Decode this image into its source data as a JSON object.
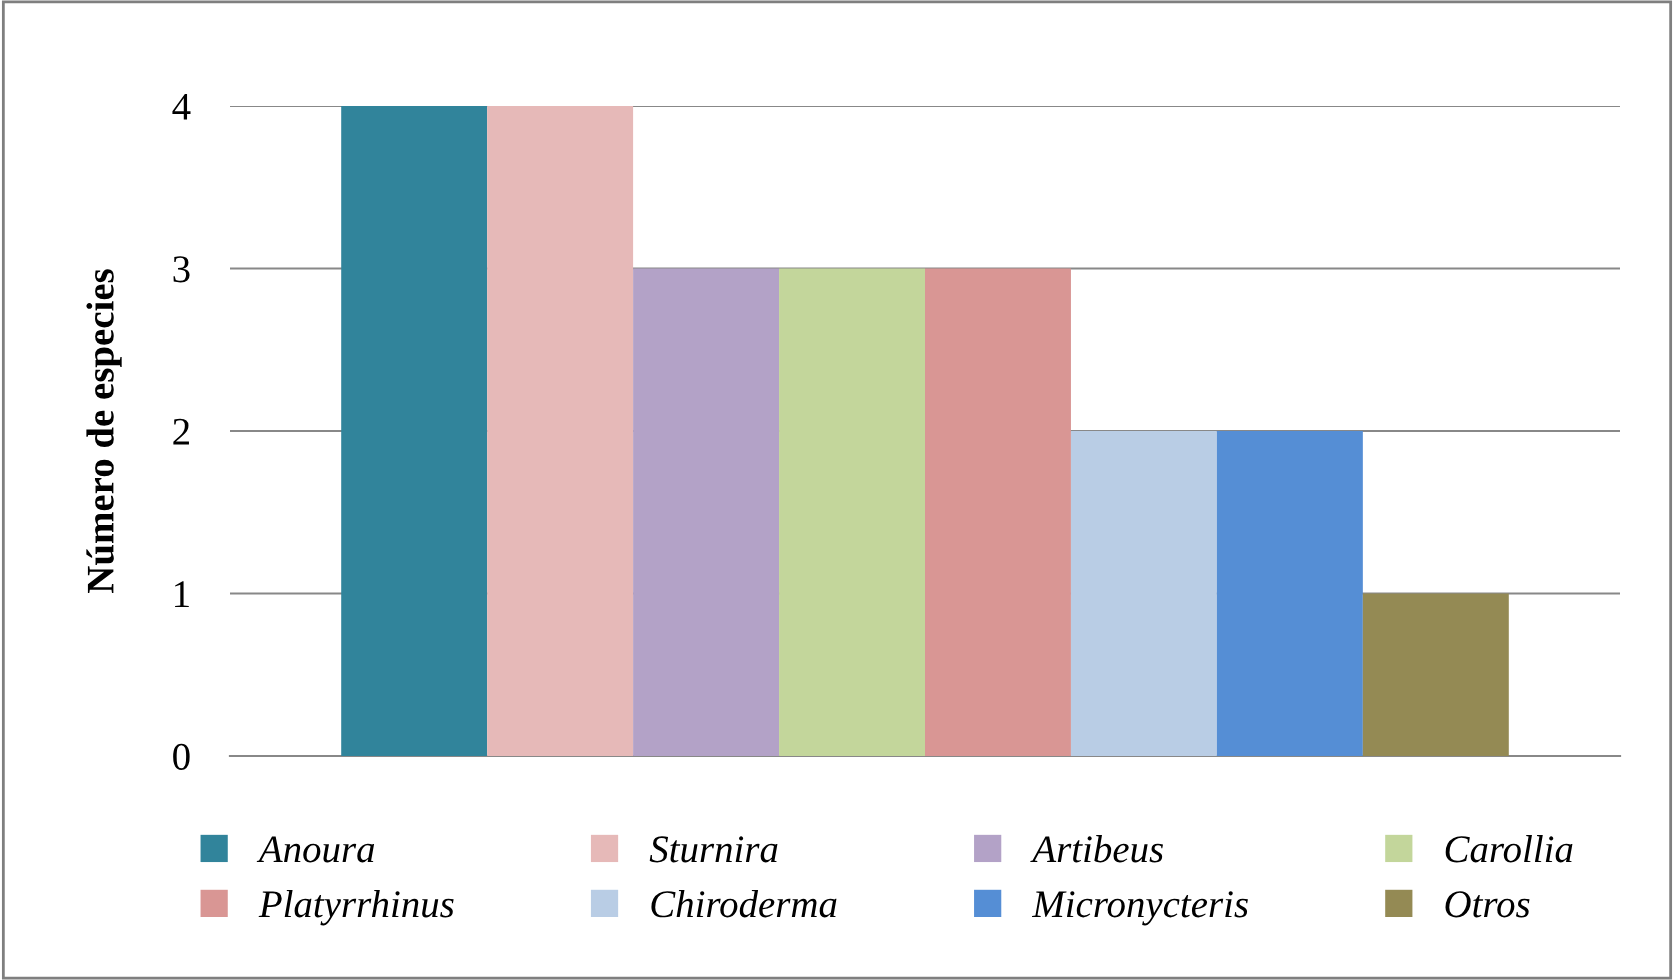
{
  "chart_data": {
    "type": "bar",
    "ylabel": "Número de especies",
    "categories": [
      null
    ],
    "series": [
      {
        "name": "Anoura",
        "color": "#31849b",
        "values": [
          4
        ]
      },
      {
        "name": "Sturnira",
        "color": "#e6b9b8",
        "values": [
          4
        ]
      },
      {
        "name": "Artibeus",
        "color": "#b3a2c7",
        "values": [
          3
        ]
      },
      {
        "name": "Carollia",
        "color": "#c3d69b",
        "values": [
          3
        ]
      },
      {
        "name": "Platyrrhinus",
        "color": "#d99694",
        "values": [
          3
        ]
      },
      {
        "name": "Chiroderma",
        "color": "#b9cde5",
        "values": [
          2
        ]
      },
      {
        "name": "Micronycteris",
        "color": "#558ed5",
        "values": [
          2
        ]
      },
      {
        "name": "Otros",
        "color": "#948a54",
        "values": [
          1
        ]
      }
    ],
    "ylim": [
      0,
      4
    ],
    "yticks": [
      0,
      1,
      2,
      3,
      4
    ],
    "grid": "y",
    "legend": "bottom"
  }
}
